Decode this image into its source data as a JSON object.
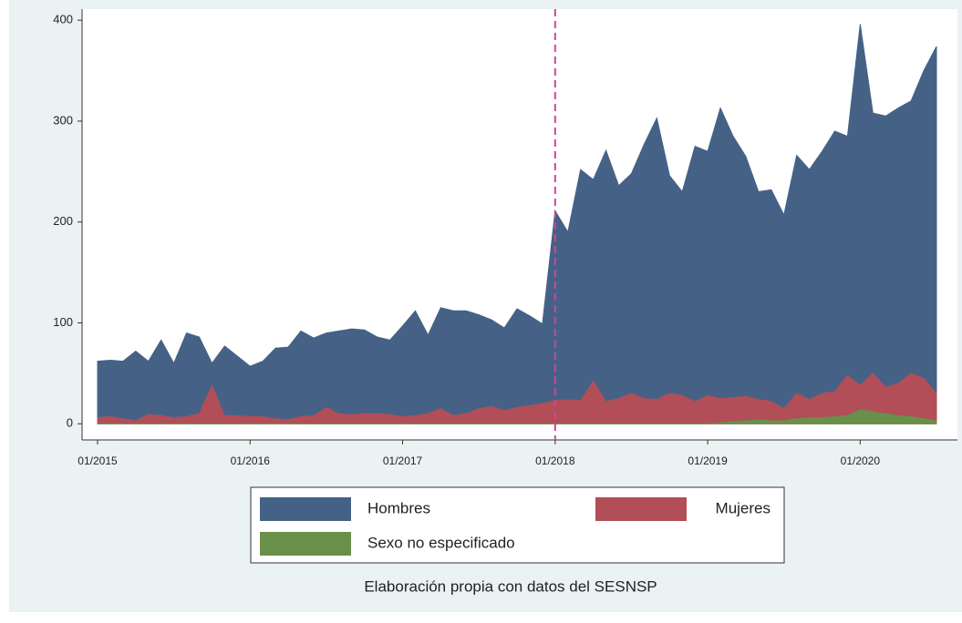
{
  "chart_data": {
    "type": "area",
    "categories": [
      "01/2015",
      null,
      null,
      null,
      null,
      null,
      null,
      null,
      null,
      null,
      null,
      null,
      "01/2016",
      null,
      null,
      null,
      null,
      null,
      null,
      null,
      null,
      null,
      null,
      null,
      "01/2017",
      null,
      null,
      null,
      null,
      null,
      null,
      null,
      null,
      null,
      null,
      null,
      "01/2018",
      null,
      null,
      null,
      null,
      null,
      null,
      null,
      null,
      null,
      null,
      null,
      "01/2019",
      null,
      null,
      null,
      null,
      null,
      null,
      null,
      null,
      null,
      null,
      null,
      "01/2020",
      null,
      null,
      null,
      null,
      null,
      null
    ],
    "series": [
      {
        "name": "Hombres",
        "color": "#456286",
        "values": [
          62,
          63,
          62,
          72,
          62,
          83,
          60,
          90,
          86,
          60,
          77,
          67,
          57,
          62,
          75,
          76,
          92,
          85,
          90,
          92,
          94,
          93,
          86,
          83,
          97,
          112,
          88,
          115,
          112,
          112,
          108,
          103,
          95,
          114,
          107,
          99,
          211,
          190,
          252,
          242,
          271,
          236,
          248,
          277,
          303,
          246,
          230,
          275,
          270,
          313,
          285,
          265,
          230,
          232,
          207,
          266,
          252,
          270,
          290,
          285,
          396,
          308,
          305,
          313,
          320,
          350,
          374
        ]
      },
      {
        "name": "Mujeres",
        "color": "#b14e58",
        "values": [
          6,
          7,
          5,
          3,
          9,
          8,
          6,
          7,
          10,
          38,
          8,
          8,
          7,
          7,
          5,
          4,
          7,
          8,
          16,
          10,
          9,
          10,
          10,
          9,
          7,
          8,
          10,
          15,
          8,
          10,
          15,
          17,
          13,
          16,
          18,
          20,
          23,
          24,
          23,
          42,
          22,
          25,
          30,
          25,
          24,
          30,
          28,
          22,
          28,
          25,
          26,
          27,
          24,
          22,
          15,
          30,
          24,
          30,
          32,
          48,
          38,
          50,
          36,
          40,
          50,
          45,
          30
        ]
      },
      {
        "name": "Sexo no especificado",
        "color": "#6a8f4a",
        "values": [
          0,
          0,
          0,
          0,
          0,
          0,
          0,
          0,
          0,
          0,
          0,
          0,
          0,
          0,
          0,
          0,
          0,
          0,
          0,
          0,
          0,
          0,
          0,
          0,
          0,
          0,
          0,
          0,
          0,
          0,
          0,
          0,
          0,
          0,
          0,
          0,
          0,
          0,
          0,
          0,
          0,
          0,
          0,
          0,
          0,
          0,
          0,
          0,
          0,
          1,
          2,
          3,
          4,
          3,
          3,
          5,
          6,
          6,
          7,
          8,
          14,
          12,
          10,
          8,
          7,
          5,
          3
        ]
      }
    ],
    "ylim": [
      -16,
      411
    ],
    "yticks": [
      0,
      100,
      200,
      300,
      400
    ],
    "vline": "01/2018",
    "vline_color": "#d0449a",
    "legend": "bottom",
    "caption": "Elaboración propia con datos del SESNSP"
  }
}
